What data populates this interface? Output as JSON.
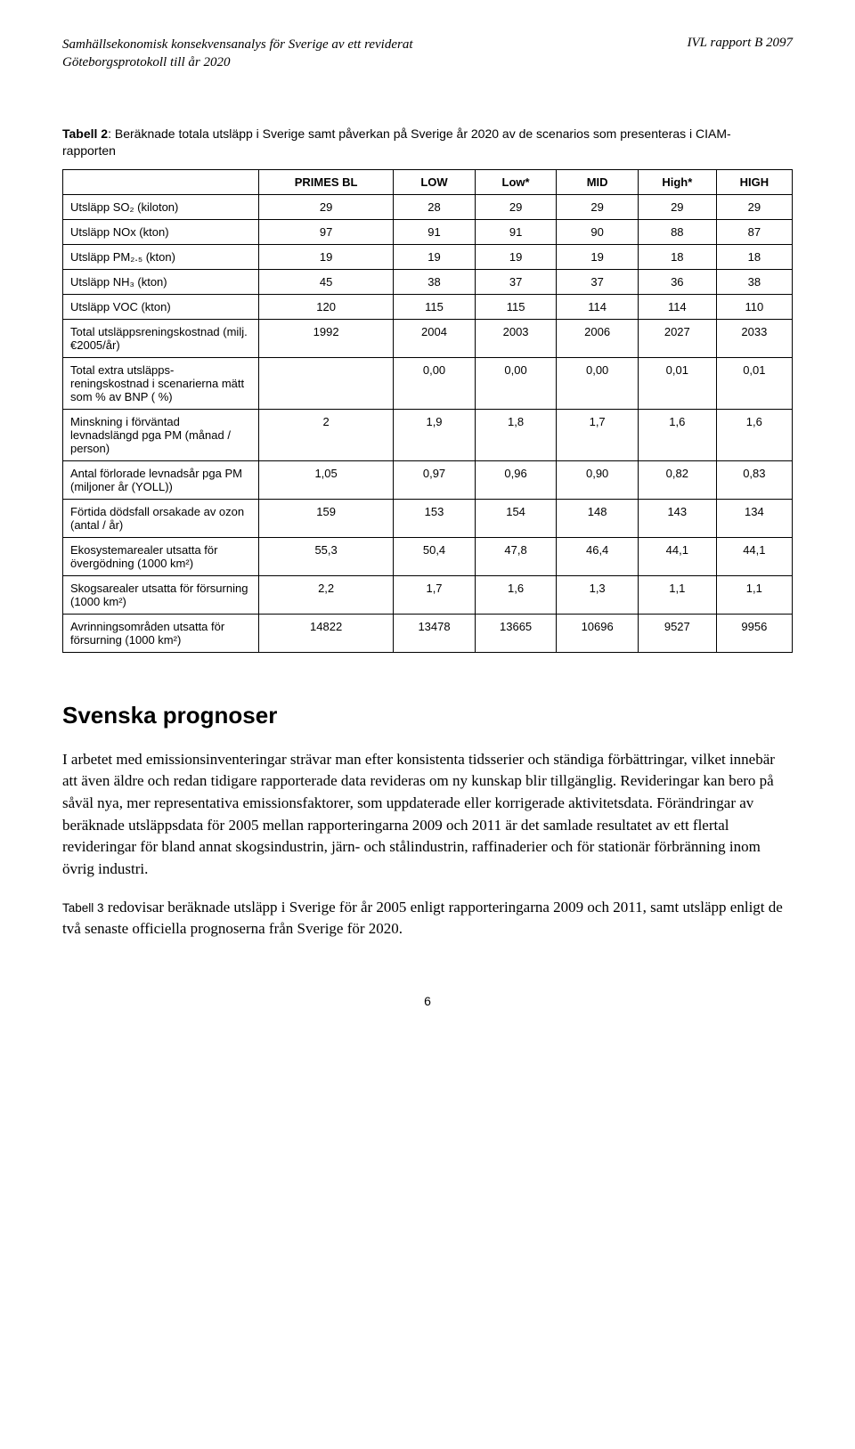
{
  "header": {
    "left": "Samhällsekonomisk konsekvensanalys för Sverige av ett reviderat Göteborgsprotokoll till år 2020",
    "right": "IVL rapport B 2097"
  },
  "tableCaption": {
    "bold": "Tabell 2",
    "rest": ": Beräknade totala utsläpp i Sverige samt påverkan på Sverige år 2020 av de scenarios som presenteras i CIAM-rapporten"
  },
  "table": {
    "columns": [
      "PRIMES BL",
      "LOW",
      "Low*",
      "MID",
      "High*",
      "HIGH"
    ],
    "rows": [
      {
        "label": "Utsläpp SO₂ (kiloton)",
        "v": [
          "29",
          "28",
          "29",
          "29",
          "29",
          "29"
        ]
      },
      {
        "label": "Utsläpp NOx (kton)",
        "v": [
          "97",
          "91",
          "91",
          "90",
          "88",
          "87"
        ]
      },
      {
        "label": "Utsläpp PM₂.₅ (kton)",
        "v": [
          "19",
          "19",
          "19",
          "19",
          "18",
          "18"
        ]
      },
      {
        "label": "Utsläpp NH₃ (kton)",
        "v": [
          "45",
          "38",
          "37",
          "37",
          "36",
          "38"
        ]
      },
      {
        "label": "Utsläpp VOC (kton)",
        "v": [
          "120",
          "115",
          "115",
          "114",
          "114",
          "110"
        ]
      },
      {
        "label": "Total utsläppsreningskostnad (milj. €2005/år)",
        "v": [
          "1992",
          "2004",
          "2003",
          "2006",
          "2027",
          "2033"
        ]
      },
      {
        "label": "Total extra utsläpps-reningskostnad i scenarierna mätt som % av BNP ( %)",
        "v": [
          "",
          "0,00",
          "0,00",
          "0,00",
          "0,01",
          "0,01"
        ]
      },
      {
        "label": "Minskning i förväntad levnadslängd pga PM (månad / person)",
        "v": [
          "2",
          "1,9",
          "1,8",
          "1,7",
          "1,6",
          "1,6"
        ]
      },
      {
        "label": "Antal förlorade levnadsår pga PM (miljoner år (YOLL))",
        "v": [
          "1,05",
          "0,97",
          "0,96",
          "0,90",
          "0,82",
          "0,83"
        ]
      },
      {
        "label": "Förtida dödsfall orsakade av ozon (antal / år)",
        "v": [
          "159",
          "153",
          "154",
          "148",
          "143",
          "134"
        ]
      },
      {
        "label": "Ekosystemarealer utsatta för övergödning (1000 km²)",
        "v": [
          "55,3",
          "50,4",
          "47,8",
          "46,4",
          "44,1",
          "44,1"
        ]
      },
      {
        "label": "Skogsarealer utsatta för försurning (1000 km²)",
        "v": [
          "2,2",
          "1,7",
          "1,6",
          "1,3",
          "1,1",
          "1,1"
        ]
      },
      {
        "label": "Avrinningsområden utsatta för försurning (1000 km²)",
        "v": [
          "14822",
          "13478",
          "13665",
          "10696",
          "9527",
          "9956"
        ]
      }
    ]
  },
  "sectionTitle": "Svenska prognoser",
  "para1": "I arbetet med emissionsinventeringar strävar man efter konsistenta tidsserier och ständiga förbättringar, vilket innebär att även äldre och redan tidigare rapporterade data revideras om ny kunskap blir tillgänglig. Revideringar kan bero på såväl nya, mer representativa emissionsfaktorer, som uppdaterade eller korrigerade aktivitetsdata. Förändringar av beräknade utsläppsdata för 2005 mellan rapporteringarna 2009 och 2011 är det samlade resultatet av ett flertal revideringar för bland annat skogsindustrin, järn- och stålindustrin, raffinaderier och för stationär förbränning inom övrig industri.",
  "para2_ref": "Tabell 3",
  "para2_rest": " redovisar beräknade utsläpp i Sverige för år 2005 enligt rapporteringarna 2009 och 2011, samt utsläpp enligt de två senaste officiella prognoserna från Sverige för 2020.",
  "pageNumber": "6"
}
